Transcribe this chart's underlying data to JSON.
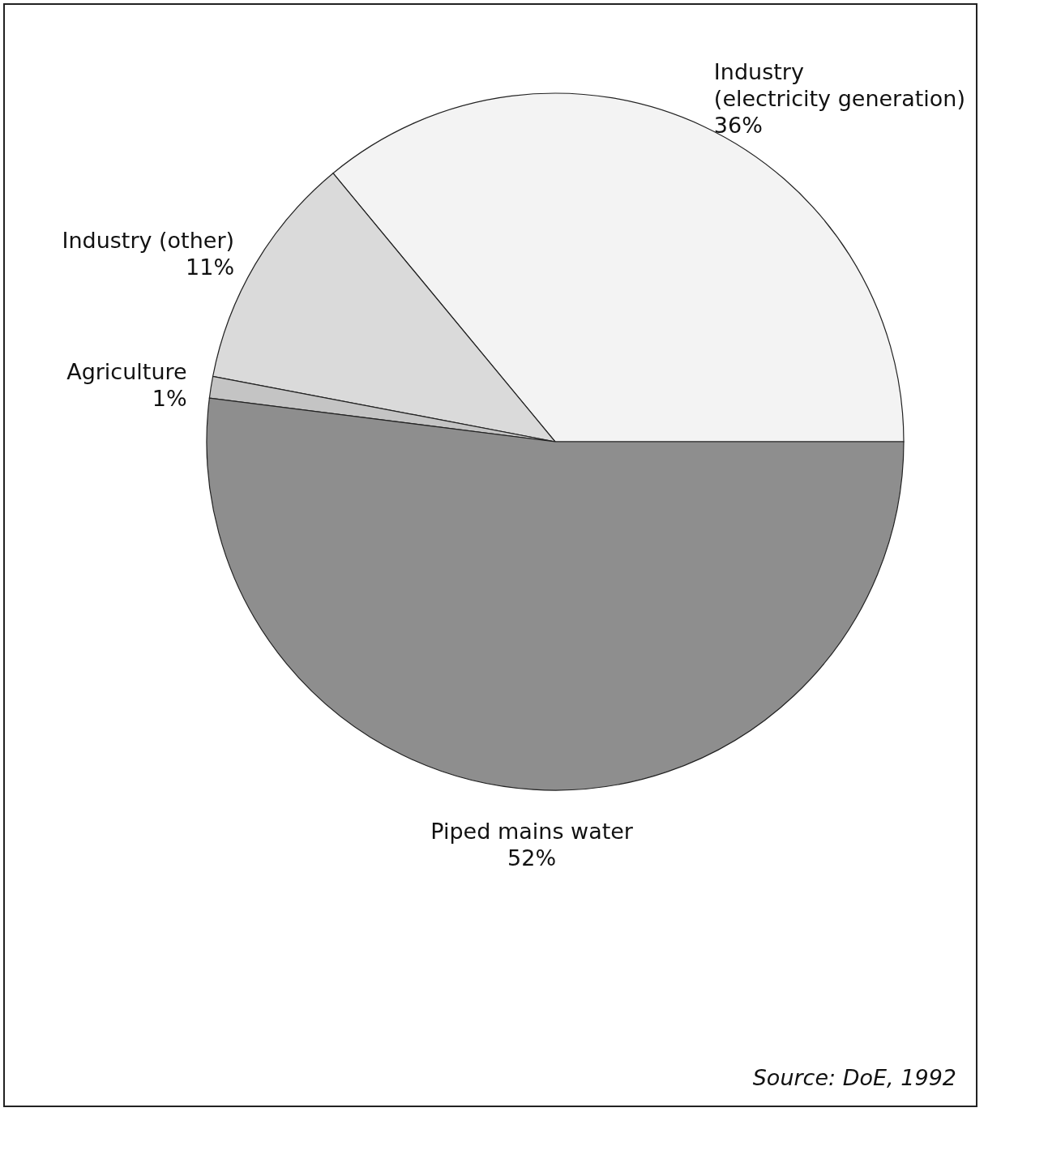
{
  "chart_data": {
    "type": "pie",
    "categories": [
      "Industry\n(electricity generation)",
      "Industry (other)",
      "Agriculture",
      "Piped mains water"
    ],
    "values": [
      36,
      11,
      1,
      52
    ],
    "value_labels": [
      "36%",
      "11%",
      "1%",
      "52%"
    ],
    "colors": [
      "#f3f3f3",
      "#dadada",
      "#c4c4c4",
      "#8e8e8e"
    ],
    "annotations": [
      "Source: DoE, 1992"
    ]
  }
}
